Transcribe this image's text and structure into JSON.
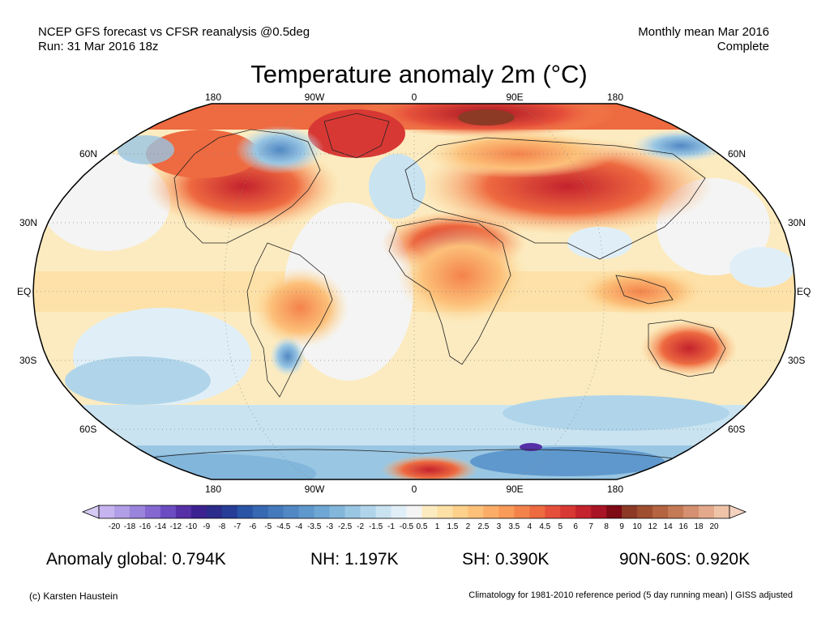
{
  "header": {
    "left_line1": "NCEP GFS forecast vs CFSR reanalysis @0.5deg",
    "left_line2": "Run: 31 Mar 2016 18z",
    "right_line1": "Monthly mean Mar 2016",
    "right_line2": "Complete"
  },
  "title": "Temperature anomaly 2m (°C)",
  "map": {
    "projection": "Robinson",
    "lon_labels_top": [
      "180",
      "90W",
      "0",
      "90E",
      "180"
    ],
    "lon_labels_bottom": [
      "180",
      "90W",
      "0",
      "90E",
      "180"
    ],
    "lat_labels_left": [
      "60N",
      "30N",
      "EQ",
      "30S",
      "60S"
    ],
    "lat_labels_right": [
      "60N",
      "30N",
      "EQ",
      "30S",
      "60S"
    ]
  },
  "colorbar": {
    "ticks": [
      "-20",
      "-18",
      "-16",
      "-14",
      "-12",
      "-10",
      "-9",
      "-8",
      "-7",
      "-6",
      "-5",
      "-4.5",
      "-4",
      "-3.5",
      "-3",
      "-2.5",
      "-2",
      "-1.5",
      "-1",
      "-0.5",
      "0.5",
      "1",
      "1.5",
      "2",
      "2.5",
      "3",
      "3.5",
      "4",
      "4.5",
      "5",
      "6",
      "7",
      "8",
      "9",
      "10",
      "12",
      "14",
      "16",
      "18",
      "20"
    ],
    "colors": [
      "#c6b4f0",
      "#b09ee6",
      "#9a84dc",
      "#8468d0",
      "#6c4cc2",
      "#5630a6",
      "#3c2290",
      "#2c2c8c",
      "#263e98",
      "#2a55a6",
      "#3768b2",
      "#4479bb",
      "#5188c4",
      "#5f98cc",
      "#6fa7d4",
      "#83b6db",
      "#99c6e3",
      "#b0d5ea",
      "#c9e3f1",
      "#e0eff7",
      "#f4f4f4",
      "#fcebc0",
      "#fde0a5",
      "#fdd08c",
      "#fcc079",
      "#fbad67",
      "#f89a58",
      "#f4834b",
      "#ee6a40",
      "#e6503a",
      "#d83834",
      "#c4222d",
      "#a81425",
      "#7e0a16",
      "#8c3a25",
      "#a04e30",
      "#b46440",
      "#c47a55",
      "#d49070",
      "#e4a98c",
      "#eec3a8"
    ],
    "left_end_color": "#d6cbf4",
    "right_end_color": "#f5d2c0"
  },
  "stats": {
    "global": "Anomaly global: 0.794K",
    "nh": "NH: 1.197K",
    "sh": "SH: 0.390K",
    "arctic": "90N-60S: 0.920K"
  },
  "footer": {
    "left": "(c) Karsten Haustein",
    "right": "Climatology for 1981-2010 reference period (5 day running mean) | GISS adjusted"
  }
}
